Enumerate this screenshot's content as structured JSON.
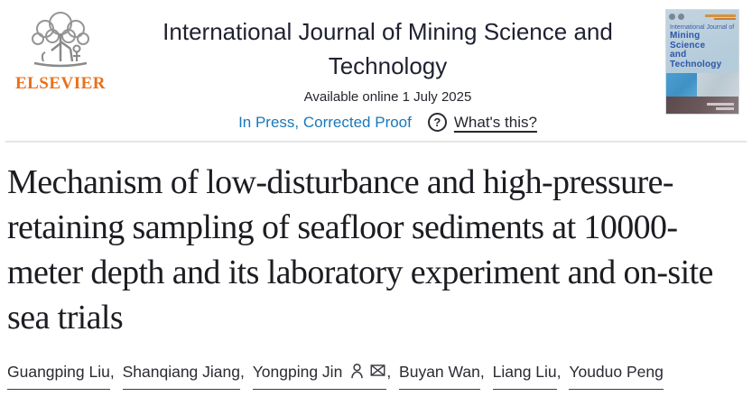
{
  "colors": {
    "publisher_orange": "#e9711c",
    "link_blue": "#1a78ba",
    "text_dark": "#24242c",
    "cover_title_blue": "#2b56a8"
  },
  "header": {
    "publisher_wordmark": "ELSEVIER",
    "journal_title": "International Journal of Mining Science and Technology",
    "available_online": "Available online 1 July 2025",
    "in_press_label": "In Press, Corrected Proof",
    "help_glyph": "?",
    "whats_this_label": "What's this?"
  },
  "cover": {
    "superline": "International Journal of",
    "line1": "Mining Science",
    "line2": "and",
    "line3": "Technology"
  },
  "article": {
    "title": "Mechanism of low-disturbance and high-pressure-retaining sampling of seafloor sediments at 10000-meter depth and its laboratory experiment and on-site sea trials"
  },
  "authors": {
    "separator": ", ",
    "list": [
      {
        "name": "Guangping Liu",
        "corresponding": false
      },
      {
        "name": "Shanqiang Jiang",
        "corresponding": false
      },
      {
        "name": "Yongping Jin",
        "corresponding": true
      },
      {
        "name": "Buyan Wan",
        "corresponding": false
      },
      {
        "name": "Liang Liu",
        "corresponding": false
      },
      {
        "name": "Youduo Peng",
        "corresponding": false
      }
    ]
  }
}
